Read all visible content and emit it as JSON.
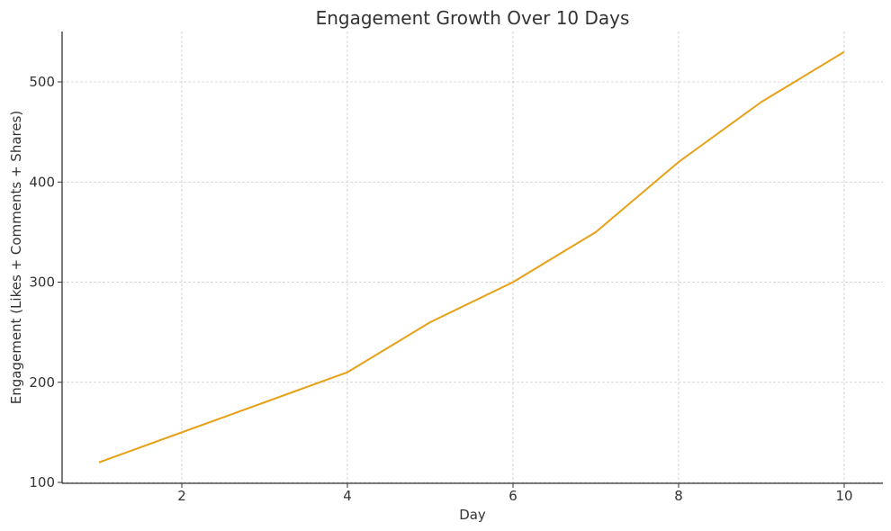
{
  "chart_data": {
    "type": "line",
    "title": "Engagement Growth Over 10 Days",
    "xlabel": "Day",
    "ylabel": "Engagement (Likes + Comments + Shares)",
    "x": [
      1,
      2,
      3,
      4,
      5,
      6,
      7,
      8,
      9,
      10
    ],
    "series": [
      {
        "name": "Engagement",
        "color": "#E6A117",
        "values": [
          120,
          150,
          180,
          210,
          260,
          300,
          350,
          420,
          480,
          530
        ]
      }
    ],
    "xticks": [
      2,
      4,
      6,
      8,
      10
    ],
    "yticks": [
      100,
      200,
      300,
      400,
      500
    ],
    "xlim": [
      0.55,
      10.45
    ],
    "ylim": [
      100,
      550
    ],
    "grid": true,
    "legend": false
  }
}
